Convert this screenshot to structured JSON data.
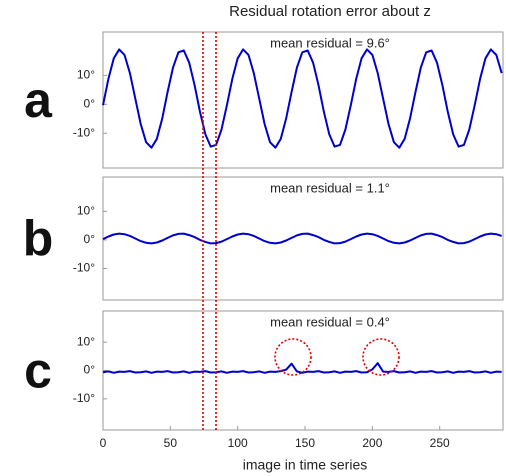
{
  "title": "Residual rotation error about z",
  "xlabel": "image in time series",
  "chart_data": [
    {
      "type": "line",
      "label": "a",
      "annotation": "mean residual = 9.6°",
      "x": [
        0,
        4,
        8,
        12,
        16,
        20,
        24,
        28,
        32,
        36,
        40,
        44,
        48,
        52,
        56,
        60,
        64,
        68,
        72,
        76,
        80,
        84,
        88,
        92,
        96,
        100,
        104,
        108,
        112,
        116,
        120,
        124,
        128,
        132,
        136,
        140,
        144,
        148,
        152,
        156,
        160,
        164,
        168,
        172,
        176,
        180,
        184,
        188,
        192,
        196,
        200,
        204,
        208,
        212,
        216,
        220,
        224,
        228,
        232,
        236,
        240,
        244,
        248,
        252,
        256,
        260,
        264,
        268,
        272,
        276,
        280,
        284,
        288,
        292,
        296
      ],
      "values": [
        -0.3,
        8.8,
        15.9,
        19.0,
        17.1,
        10.8,
        2.0,
        -6.8,
        -13.1,
        -15.0,
        -11.9,
        -4.8,
        4.3,
        12.7,
        18.0,
        18.6,
        14.4,
        6.6,
        -2.6,
        -10.4,
        -14.6,
        -14.0,
        -8.7,
        -0.3,
        8.8,
        15.9,
        19.0,
        17.1,
        10.8,
        2.0,
        -6.8,
        -13.1,
        -15.0,
        -11.9,
        -4.8,
        4.3,
        12.7,
        18.0,
        18.6,
        14.4,
        6.6,
        -2.6,
        -10.4,
        -14.6,
        -14.0,
        -8.7,
        -0.3,
        8.8,
        15.9,
        19.0,
        17.1,
        10.8,
        2.0,
        -6.8,
        -13.1,
        -15.0,
        -11.9,
        -4.8,
        4.3,
        12.7,
        18.0,
        18.6,
        14.4,
        6.6,
        -2.6,
        -10.4,
        -14.6,
        -14.0,
        -8.7,
        -0.3,
        8.8,
        15.9,
        19.0,
        17.1,
        10.8
      ],
      "color": "#0000cc",
      "xlim": [
        0,
        297
      ],
      "ylim": [
        -22,
        25
      ],
      "yticks": [
        {
          "value": 10,
          "label": "10°"
        },
        {
          "value": 0,
          "label": "0°"
        },
        {
          "value": -10,
          "label": "-10°"
        }
      ]
    },
    {
      "type": "line",
      "label": "b",
      "annotation": "mean residual = 1.1°",
      "x": [
        0,
        4,
        8,
        12,
        16,
        20,
        24,
        28,
        32,
        36,
        40,
        44,
        48,
        52,
        56,
        60,
        64,
        68,
        72,
        76,
        80,
        84,
        88,
        92,
        96,
        100,
        104,
        108,
        112,
        116,
        120,
        124,
        128,
        132,
        136,
        140,
        144,
        148,
        152,
        156,
        160,
        164,
        168,
        172,
        176,
        180,
        184,
        188,
        192,
        196,
        200,
        204,
        208,
        212,
        216,
        220,
        224,
        228,
        232,
        236,
        240,
        244,
        248,
        252,
        256,
        260,
        264,
        268,
        272,
        276,
        280,
        284,
        288,
        292,
        296
      ],
      "values": [
        0.3,
        1.2,
        1.9,
        2.2,
        2.0,
        1.4,
        0.5,
        -0.4,
        -1.0,
        -1.2,
        -0.9,
        -0.2,
        0.7,
        1.6,
        2.1,
        2.2,
        1.7,
        1.0,
        0.0,
        -0.7,
        -1.2,
        -1.1,
        -0.6,
        0.3,
        1.2,
        1.9,
        2.2,
        2.0,
        1.4,
        0.5,
        -0.4,
        -1.0,
        -1.2,
        -0.9,
        -0.2,
        0.7,
        1.6,
        2.1,
        2.2,
        1.7,
        1.0,
        0.0,
        -0.7,
        -1.2,
        -1.1,
        -0.6,
        0.3,
        1.2,
        1.9,
        2.2,
        2.0,
        1.4,
        0.5,
        -0.4,
        -1.0,
        -1.2,
        -0.9,
        -0.2,
        0.7,
        1.6,
        2.1,
        2.2,
        1.7,
        1.0,
        0.0,
        -0.7,
        -1.2,
        -1.1,
        -0.6,
        0.3,
        1.2,
        1.9,
        2.2,
        2.0,
        1.4
      ],
      "color": "#0000cc",
      "xlim": [
        0,
        297
      ],
      "ylim": [
        -21,
        22
      ],
      "yticks": [
        {
          "value": 10,
          "label": "10°"
        },
        {
          "value": 0,
          "label": "0°"
        },
        {
          "value": -10,
          "label": "-10°"
        }
      ]
    },
    {
      "type": "line",
      "label": "c",
      "annotation": "mean residual = 0.4°",
      "x": [
        0,
        4,
        8,
        12,
        16,
        20,
        24,
        28,
        32,
        36,
        40,
        44,
        48,
        52,
        56,
        60,
        64,
        68,
        72,
        76,
        80,
        84,
        88,
        92,
        96,
        100,
        104,
        108,
        112,
        116,
        120,
        124,
        128,
        132,
        136,
        140,
        144,
        148,
        152,
        156,
        160,
        164,
        168,
        172,
        176,
        180,
        184,
        188,
        192,
        196,
        200,
        204,
        208,
        212,
        216,
        220,
        224,
        228,
        232,
        236,
        240,
        244,
        248,
        252,
        256,
        260,
        264,
        268,
        272,
        276,
        280,
        284,
        288,
        292,
        296
      ],
      "values": [
        -0.6,
        -0.3,
        -0.8,
        -0.4,
        -0.5,
        -0.2,
        -0.7,
        -0.6,
        -0.3,
        -0.8,
        -0.4,
        -0.5,
        -0.2,
        -0.7,
        -0.6,
        -0.3,
        -0.8,
        -0.4,
        -0.5,
        -0.2,
        -0.7,
        -0.6,
        -0.3,
        -0.8,
        -0.4,
        -0.5,
        -0.2,
        -0.7,
        -0.6,
        -0.3,
        -0.8,
        -0.4,
        -0.5,
        -0.2,
        0.3,
        2.4,
        -0.3,
        -0.8,
        -0.4,
        -0.5,
        -0.2,
        -0.7,
        -0.6,
        -0.3,
        -0.8,
        -0.4,
        -0.5,
        -0.2,
        -0.7,
        -0.6,
        0.4,
        2.6,
        -0.4,
        -0.5,
        -0.2,
        -0.7,
        -0.6,
        -0.3,
        -0.8,
        -0.4,
        -0.5,
        -0.2,
        -0.7,
        -0.6,
        -0.3,
        -0.8,
        -0.4,
        -0.5,
        -0.2,
        -0.7,
        -0.6,
        -0.3,
        -0.8,
        -0.4,
        -0.5
      ],
      "color": "#0000cc",
      "xlim": [
        0,
        297
      ],
      "ylim": [
        -21,
        21
      ],
      "yticks": [
        {
          "value": 10,
          "label": "10°"
        },
        {
          "value": 0,
          "label": "0°"
        },
        {
          "value": -10,
          "label": "-10°"
        }
      ],
      "xticks": [
        0,
        50,
        100,
        150,
        200,
        250
      ]
    }
  ]
}
